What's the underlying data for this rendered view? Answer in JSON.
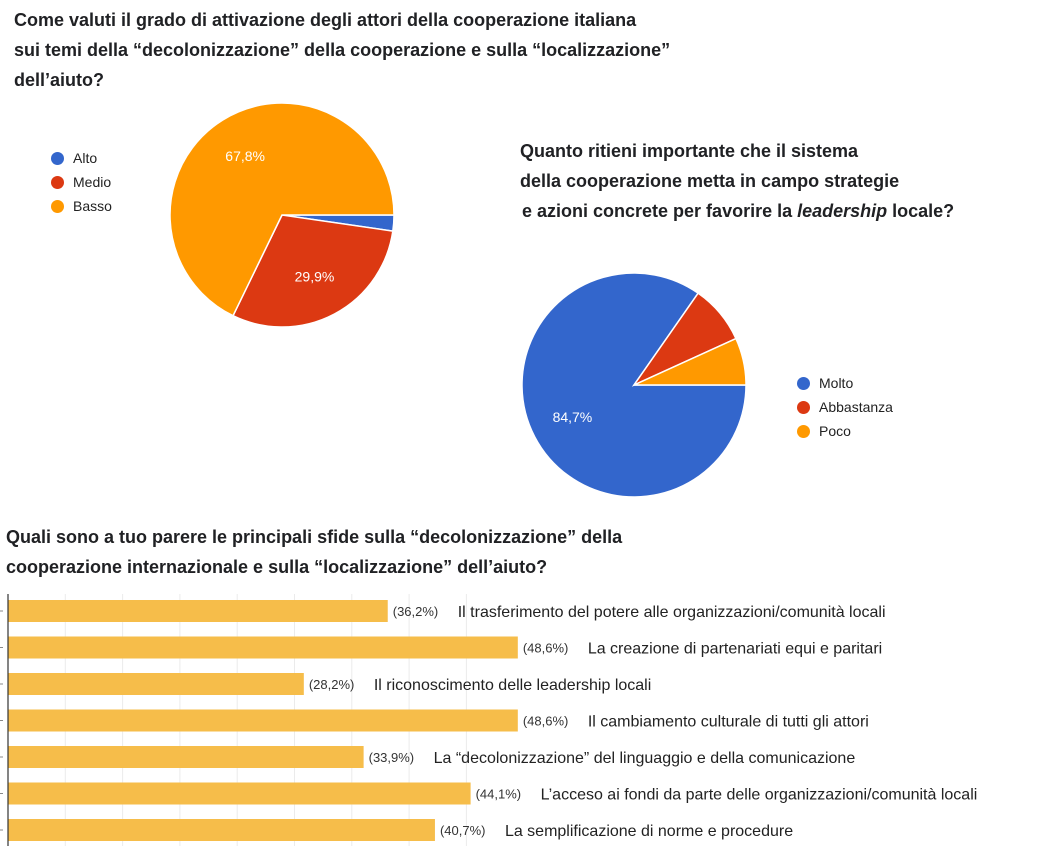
{
  "chart_data": [
    {
      "type": "pie",
      "title": "Come valuti il grado di attivazione degli attori della cooperazione italiana sui temi della “decolonizzazione” della cooperazione e sulla “localizzazione” dell’aiuto?",
      "title_lines": [
        "Come valuti il grado di attivazione degli attori della cooperazione italiana",
        "sui temi della “decolonizzazione” della cooperazione e sulla “localizzazione”",
        "dell’aiuto?"
      ],
      "legend_position": "left",
      "slices": [
        {
          "label": "Alto",
          "value": 2.3,
          "color": "#3366cc",
          "data_label": ""
        },
        {
          "label": "Medio",
          "value": 29.9,
          "color": "#dc3912",
          "data_label": "29,9%"
        },
        {
          "label": "Basso",
          "value": 67.8,
          "color": "#ff9900",
          "data_label": "67,8%"
        }
      ]
    },
    {
      "type": "pie",
      "title": "Quanto ritieni importante che il sistema della cooperazione metta in campo strategie e azioni concrete per favorire la leadership locale?",
      "title_lines": [
        "Quanto ritieni importante che il sistema",
        "della cooperazione metta in campo strategie"
      ],
      "title_line3_pre": "e azioni concrete per favorire la ",
      "title_line3_em": "leadership",
      "title_line3_post": " locale?",
      "legend_position": "right",
      "slices": [
        {
          "label": "Molto",
          "value": 84.7,
          "color": "#3366cc",
          "data_label": "84,7%"
        },
        {
          "label": "Abbastanza",
          "value": 8.5,
          "color": "#dc3912",
          "data_label": ""
        },
        {
          "label": "Poco",
          "value": 6.8,
          "color": "#ff9900",
          "data_label": ""
        }
      ]
    },
    {
      "type": "bar",
      "orientation": "horizontal",
      "title_lines": [
        "Quali sono a tuo parere le principali sfide sulla “decolonizzazione” della",
        "cooperazione internazionale e sulla “localizzazione” dell’aiuto?"
      ],
      "color": "#f6bd4a",
      "grid": true,
      "categories": [
        "Il trasferimento del potere alle organizzazioni/comunità locali",
        "La creazione di partenariati equi e paritari",
        "Il riconoscimento delle leadership locali",
        "Il cambiamento culturale di tutti gli attori",
        "La “decolonizzazione” del linguaggio e della comunicazione",
        "L’acceso ai fondi da parte delle organizzazioni/comunità locali",
        "La semplificazione di norme e procedure"
      ],
      "values": [
        36.2,
        48.6,
        28.2,
        48.6,
        33.9,
        44.1,
        40.7
      ],
      "value_labels": [
        "(36,2%)",
        "(48,6%)",
        "(28,2%)",
        "(48,6%)",
        "(33,9%)",
        "(44,1%)",
        "(40,7%)"
      ]
    }
  ]
}
